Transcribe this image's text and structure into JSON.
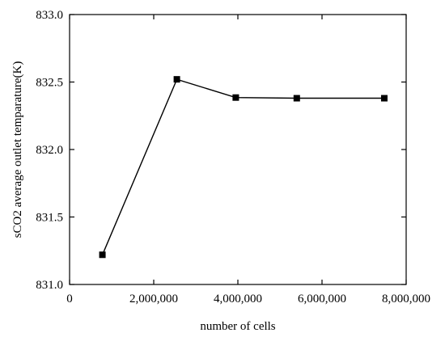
{
  "chart_data": {
    "type": "line",
    "title": "",
    "xlabel": "number of cells",
    "ylabel": "sCO2 average outlet temparature(K)",
    "xlim": [
      0,
      8000000
    ],
    "ylim": [
      831.0,
      833.0
    ],
    "x_ticks": [
      0,
      2000000,
      4000000,
      6000000,
      8000000
    ],
    "x_tick_labels": [
      "0",
      "2,000,000",
      "4,000,000",
      "6,000,000",
      "8,000,000"
    ],
    "y_ticks": [
      831.0,
      831.5,
      832.0,
      832.5,
      833.0
    ],
    "y_tick_labels": [
      "831.0",
      "831.5",
      "832.0",
      "832.5",
      "833.0"
    ],
    "grid": false,
    "legend": "none",
    "series": [
      {
        "x": [
          780000,
          2550000,
          3950000,
          5400000,
          7480000
        ],
        "y": [
          831.22,
          832.52,
          832.385,
          832.38,
          832.38
        ],
        "color": "#000000",
        "marker": "square"
      }
    ]
  }
}
